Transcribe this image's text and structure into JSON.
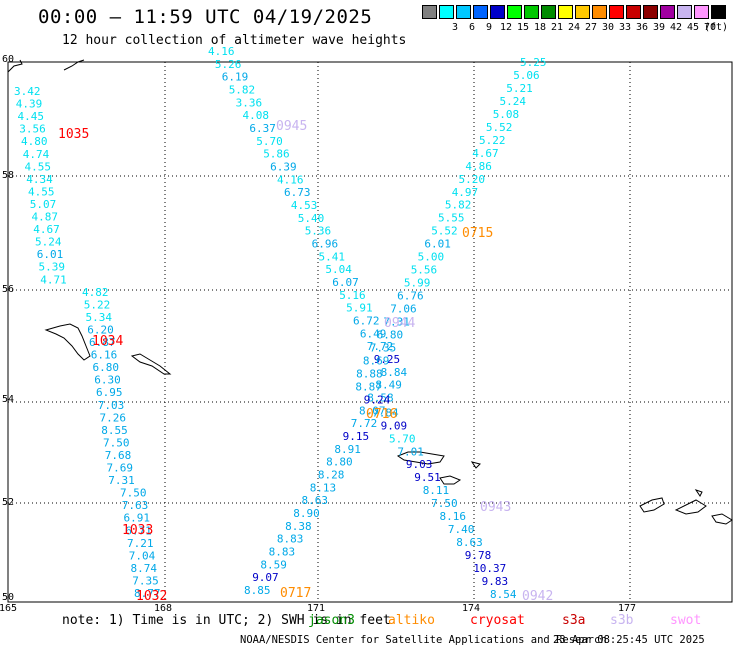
{
  "header": {
    "title": "00:00 – 11:59 UTC 04/19/2025",
    "subtitle": "12 hour collection of altimeter wave heights"
  },
  "scale": {
    "unit": "(ft)",
    "bins": [
      {
        "label": "",
        "color": "#808080"
      },
      {
        "label": "3",
        "color": "#00ffff"
      },
      {
        "label": "6",
        "color": "#00c8ff"
      },
      {
        "label": "9",
        "color": "#0064ff"
      },
      {
        "label": "12",
        "color": "#0000c8"
      },
      {
        "label": "15",
        "color": "#00ff00"
      },
      {
        "label": "18",
        "color": "#00c800"
      },
      {
        "label": "21",
        "color": "#008c00"
      },
      {
        "label": "24",
        "color": "#ffff00"
      },
      {
        "label": "27",
        "color": "#ffc800"
      },
      {
        "label": "30",
        "color": "#ff8c00"
      },
      {
        "label": "33",
        "color": "#ff0000"
      },
      {
        "label": "36",
        "color": "#c80000"
      },
      {
        "label": "39",
        "color": "#8c0000"
      },
      {
        "label": "42",
        "color": "#a000a0"
      },
      {
        "label": "45",
        "color": "#c8b4f0"
      },
      {
        "label": "70",
        "color": "#ff96ff"
      },
      {
        "label": "",
        "color": "#000000"
      }
    ]
  },
  "map": {
    "lon_ticks": [
      "165",
      "168",
      "171",
      "174",
      "177"
    ],
    "lat_ticks": [
      "60",
      "58",
      "56",
      "54",
      "52",
      "50"
    ],
    "pass_times": [
      {
        "text": "1035",
        "color": "#ff0000"
      },
      {
        "text": "1034",
        "color": "#ff0000"
      },
      {
        "text": "1033",
        "color": "#ff0000"
      },
      {
        "text": "1032",
        "color": "#ff0000"
      },
      {
        "text": "0945",
        "color": "#c8b4f0"
      },
      {
        "text": "0944",
        "color": "#c8b4f0"
      },
      {
        "text": "0943",
        "color": "#c8b4f0"
      },
      {
        "text": "0942",
        "color": "#c8b4f0"
      },
      {
        "text": "0715",
        "color": "#ff8c00"
      },
      {
        "text": "0716",
        "color": "#ff8c00"
      },
      {
        "text": "0717",
        "color": "#ff8c00"
      }
    ],
    "tracks": [
      {
        "name": "track-a",
        "values": [
          "3.42",
          "4.39",
          "4.45",
          "3.56",
          "4.80",
          "4.74",
          "4.55",
          "4.34",
          "4.55",
          "5.07",
          "4.87",
          "4.67",
          "5.24",
          "6.01",
          "5.39",
          "4.71",
          "4.82",
          "5.22",
          "5.34",
          "6.20",
          "6.87",
          "6.16",
          "6.80",
          "6.30",
          "6.95",
          "7.03",
          "7.26",
          "8.55",
          "7.50",
          "7.68",
          "7.69",
          "7.31",
          "7.50",
          "7.63",
          "6.91",
          "6.71",
          "7.21",
          "7.04",
          "8.74",
          "7.35",
          "8.77"
        ]
      },
      {
        "name": "track-b",
        "values": [
          "4.16",
          "5.26",
          "6.19",
          "5.82",
          "3.36",
          "4.08",
          "6.37",
          "5.70",
          "5.86",
          "6.39",
          "4.16",
          "6.73",
          "4.53",
          "5.40",
          "5.36",
          "6.96",
          "5.41",
          "5.04",
          "6.07",
          "5.16",
          "5.91",
          "6.72",
          "6.49",
          "7.72",
          "9.25",
          "8.84",
          "8.49",
          "8.58",
          "8.07",
          "7.72",
          "9.15",
          "8.91",
          "8.80",
          "8.28",
          "8.13",
          "8.63",
          "8.90",
          "8.38",
          "8.83",
          "8.83",
          "8.59",
          "9.07",
          "8.85"
        ]
      },
      {
        "name": "track-c",
        "values": [
          "5.25",
          "5.06",
          "5.21",
          "5.24",
          "5.08",
          "5.52",
          "5.22",
          "4.67",
          "4.86",
          "5.20",
          "4.97",
          "5.82",
          "5.55",
          "5.52",
          "6.01",
          "5.00",
          "5.56",
          "5.99",
          "6.76",
          "7.06",
          "7.31",
          "6.80",
          "7.35",
          "8.69",
          "8.88",
          "8.87",
          "9.24",
          "7.84",
          "9.09",
          "5.70",
          "7.01",
          "9.03",
          "9.51",
          "8.11",
          "7.50",
          "8.16",
          "7.40",
          "8.63",
          "9.78",
          "10.37",
          "9.83",
          "8.54"
        ]
      }
    ]
  },
  "footnote": {
    "note": "note:  1) Time is in UTC;  2) SWH is in feet",
    "sat_jason3": "jason3",
    "sat_altika": "altiko",
    "sat_cryosat": "cryosat",
    "sat_s3a": "s3a",
    "sat_s3b": "s3b",
    "sat_swot": "swot"
  },
  "credit": "NOAA/NESDIS Center for Satellite Applications and Research",
  "timestamp": "23 Apr 08:25:45 UTC 2025"
}
